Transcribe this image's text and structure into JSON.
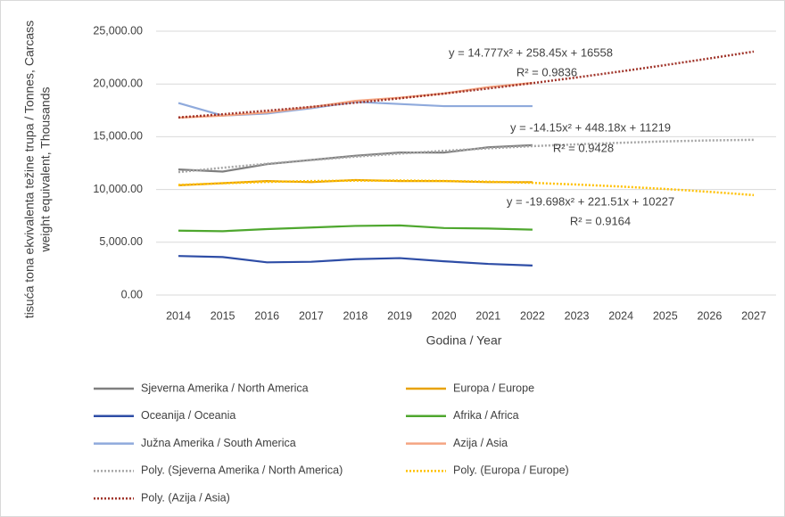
{
  "chart_data": {
    "type": "line",
    "ylabel": [
      "tisuća tona ekvivalenta težine trupa / Tonnes, Carcass",
      "weight equivalent, Thousands"
    ],
    "xlabel": "Godina / Year",
    "x": [
      2014,
      2015,
      2016,
      2017,
      2018,
      2019,
      2020,
      2021,
      2022,
      2023,
      2024,
      2025,
      2026,
      2027
    ],
    "xticks": [
      2014,
      2015,
      2016,
      2017,
      2018,
      2019,
      2020,
      2021,
      2022,
      2023,
      2024,
      2025,
      2026,
      2027
    ],
    "ylim": [
      0,
      25000
    ],
    "yticks": [
      {
        "value": 0,
        "label": "0.00"
      },
      {
        "value": 5000,
        "label": "5,000.00"
      },
      {
        "value": 10000,
        "label": "10,000.00"
      },
      {
        "value": 15000,
        "label": "15,000.00"
      },
      {
        "value": 20000,
        "label": "20,000.00"
      },
      {
        "value": 25000,
        "label": "25,000.00"
      }
    ],
    "grid": true,
    "series": [
      {
        "name": "Sjeverna Amerika / North America",
        "color": "#7f7f7f",
        "dotted": false,
        "values": [
          11900,
          11700,
          12400,
          12800,
          13200,
          13500,
          13500,
          14000,
          14200,
          null,
          null,
          null,
          null,
          null
        ]
      },
      {
        "name": "Europa / Europe",
        "color": "#e8a202",
        "dotted": false,
        "values": [
          10400,
          10600,
          10800,
          10700,
          10900,
          10800,
          10800,
          10700,
          10700,
          null,
          null,
          null,
          null,
          null
        ]
      },
      {
        "name": "Oceanija / Oceania",
        "color": "#2e4da6",
        "dotted": false,
        "values": [
          3700,
          3600,
          3100,
          3150,
          3400,
          3500,
          3200,
          2950,
          2800,
          null,
          null,
          null,
          null,
          null
        ]
      },
      {
        "name": "Afrika / Africa",
        "color": "#4ea72e",
        "dotted": false,
        "values": [
          6100,
          6050,
          6250,
          6400,
          6550,
          6600,
          6350,
          6300,
          6200,
          null,
          null,
          null,
          null,
          null
        ]
      },
      {
        "name": "Južna Amerika / South America",
        "color": "#8faadc",
        "dotted": false,
        "values": [
          18200,
          17000,
          17200,
          17700,
          18300,
          18100,
          17900,
          17900,
          17900,
          null,
          null,
          null,
          null,
          null
        ]
      },
      {
        "name": "Azija / Asia",
        "color": "#f4a582",
        "dotted": false,
        "values": [
          16800,
          17000,
          17300,
          17800,
          18400,
          18700,
          19100,
          19700,
          20100,
          null,
          null,
          null,
          null,
          null
        ]
      },
      {
        "name": "Poly. (Sjeverna Amerika / North America)",
        "color": "#a6a6a6",
        "dotted": true,
        "values": [
          11650,
          12060,
          12440,
          12790,
          13110,
          13400,
          13660,
          13900,
          14110,
          14280,
          14430,
          14560,
          14650,
          14710
        ]
      },
      {
        "name": "Poly. (Europa / Europe)",
        "color": "#ffc000",
        "dotted": true,
        "values": [
          10430,
          10590,
          10720,
          10800,
          10840,
          10850,
          10810,
          10740,
          10630,
          10470,
          10280,
          10050,
          9780,
          9470
        ]
      },
      {
        "name": "Poly. (Azija / Asia)",
        "color": "#a0342a",
        "dotted": true,
        "values": [
          16830,
          17130,
          17470,
          17830,
          18220,
          18640,
          19090,
          19570,
          20080,
          20620,
          21190,
          21790,
          22420,
          23070
        ]
      }
    ],
    "annotations": [
      "y = 14.777x² + 258.45x + 16558",
      "R² = 0.9836",
      "y = -14.15x² + 448.18x + 11219",
      "R² = 0.9428",
      "y = -19.698x² + 221.51x + 10227",
      "R² = 0.9164"
    ]
  }
}
